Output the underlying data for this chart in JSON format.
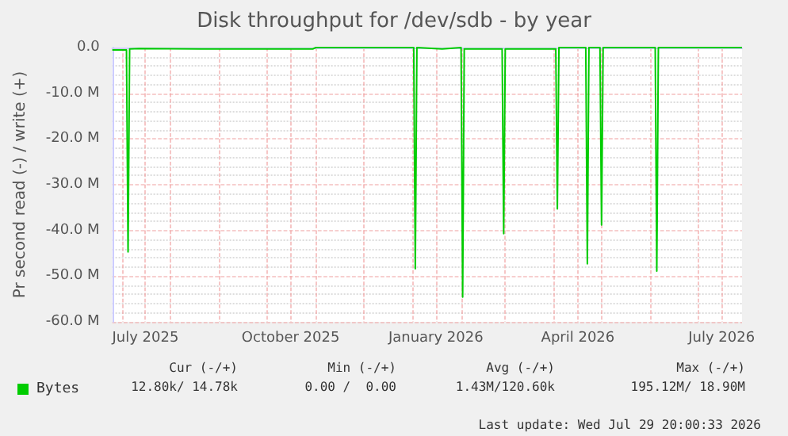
{
  "chart_data": {
    "type": "line",
    "title": "Disk throughput for /dev/sdb - by year",
    "ylabel": "Pr second read (-) / write (+)",
    "x": [
      "2025-06-25",
      "2025-07-04",
      "2025-07-05",
      "2025-07-06",
      "2025-07-12",
      "2025-08-20",
      "2025-10-30",
      "2025-11-01",
      "2026-01-02",
      "2026-01-03",
      "2026-01-04",
      "2026-01-20",
      "2026-02-01",
      "2026-02-02",
      "2026-02-03",
      "2026-02-27",
      "2026-02-28",
      "2026-03-01",
      "2026-04-02",
      "2026-04-03",
      "2026-04-04",
      "2026-04-21",
      "2026-04-22",
      "2026-04-23",
      "2026-04-30",
      "2026-05-01",
      "2026-05-02",
      "2026-06-04",
      "2026-06-05",
      "2026-06-06",
      "2026-07-29"
    ],
    "series": [
      {
        "name": "Bytes",
        "color": "#00cc00",
        "values": [
          -0.5,
          -0.5,
          -44.7,
          -0.3,
          -0.2,
          -0.3,
          -0.3,
          0,
          0,
          -48.4,
          0,
          -0.3,
          0,
          -54.6,
          -0.3,
          -0.3,
          -40.7,
          -0.3,
          -0.3,
          -35.3,
          0,
          0,
          -47.3,
          0,
          0,
          -38.8,
          0,
          0,
          -48.9,
          0,
          0
        ]
      }
    ],
    "xlim": [
      "2025-06-25",
      "2026-07-29"
    ],
    "xticks": [
      {
        "value": "2025-07-01",
        "label": null
      },
      {
        "value": "2025-07-16",
        "label": "July 2025"
      },
      {
        "value": "2025-08-01",
        "label": null
      },
      {
        "value": "2025-09-01",
        "label": null
      },
      {
        "value": "2025-10-01",
        "label": null
      },
      {
        "value": "2025-10-16",
        "label": "October 2025"
      },
      {
        "value": "2025-11-01",
        "label": null
      },
      {
        "value": "2025-12-01",
        "label": null
      },
      {
        "value": "2026-01-01",
        "label": null
      },
      {
        "value": "2026-01-16",
        "label": "January 2026"
      },
      {
        "value": "2026-02-01",
        "label": null
      },
      {
        "value": "2026-03-01",
        "label": null
      },
      {
        "value": "2026-04-01",
        "label": null
      },
      {
        "value": "2026-04-16",
        "label": "April 2026"
      },
      {
        "value": "2026-05-01",
        "label": null
      },
      {
        "value": "2026-06-01",
        "label": null
      },
      {
        "value": "2026-07-01",
        "label": null
      },
      {
        "value": "2026-07-16",
        "label": "July 2026"
      }
    ],
    "ylim": [
      -60,
      0
    ],
    "yticks": [
      {
        "value": -60,
        "label": "-60.0 M"
      },
      {
        "value": -50,
        "label": "-50.0 M"
      },
      {
        "value": -40,
        "label": "-40.0 M"
      },
      {
        "value": -30,
        "label": "-30.0 M"
      },
      {
        "value": -20,
        "label": "-20.0 M"
      },
      {
        "value": -10,
        "label": "-10.0 M"
      },
      {
        "value": 0,
        "label": "0.0"
      }
    ],
    "grid": true,
    "legend": "bottom left",
    "marker": "none",
    "line_style": "solid",
    "annotations": [
      "Cur (-/+)",
      "Min (-/+)",
      "Avg (-/+)",
      "Max (-/+)",
      "12.80k/ 14.78k",
      "0.00 /  0.00",
      "1.43M/120.60k",
      "195.12M/ 18.90M",
      "Last update: Wed Jul 29 20:00:33 2026"
    ]
  }
}
